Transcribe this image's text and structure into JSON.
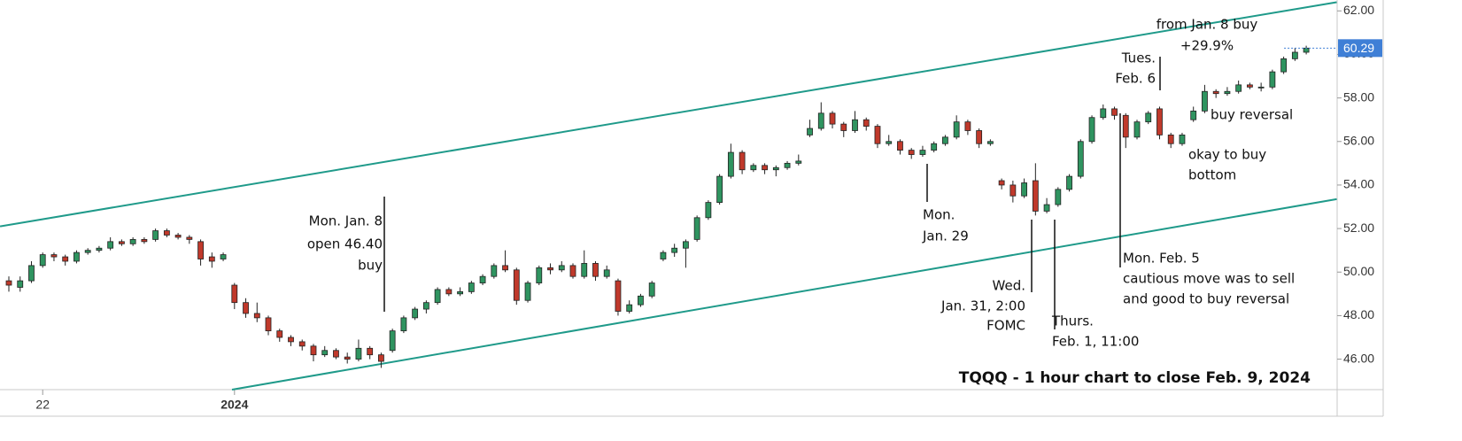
{
  "chart_data": {
    "type": "candlestick",
    "title": "TQQQ - 1 hour chart to close Feb. 9, 2024",
    "up_color": "#2f9460",
    "down_color": "#c0392b",
    "ylim": [
      44.6,
      62.5
    ],
    "yticks": [
      {
        "value": 46,
        "label": "46.00"
      },
      {
        "value": 48,
        "label": "48.00"
      },
      {
        "value": 50,
        "label": "50.00"
      },
      {
        "value": 52,
        "label": "52.00"
      },
      {
        "value": 54,
        "label": "54.00"
      },
      {
        "value": 56,
        "label": "56.00"
      },
      {
        "value": 58,
        "label": "58.00"
      },
      {
        "value": 60,
        "label": "60.00"
      },
      {
        "value": 62,
        "label": "62.00"
      }
    ],
    "categories": [
      null,
      null,
      null,
      "22",
      null,
      null,
      null,
      null,
      null,
      null,
      null,
      null,
      null,
      null,
      null,
      null,
      null,
      null,
      null,
      null,
      "2024",
      null,
      null,
      null,
      null,
      null,
      null,
      null,
      null,
      null,
      null,
      null,
      null,
      null,
      null,
      null,
      null,
      null,
      null,
      null,
      null,
      null,
      null,
      null,
      null,
      null,
      null,
      null,
      null,
      null,
      null,
      null,
      null,
      null,
      null,
      null,
      null,
      null,
      null,
      null,
      null,
      null,
      null,
      null,
      null,
      null,
      null,
      null,
      null,
      null,
      null,
      null,
      null,
      null,
      null,
      null,
      null,
      null,
      null,
      null,
      null,
      null,
      null,
      null,
      null,
      null,
      null,
      null,
      null,
      null,
      null,
      null,
      null,
      null,
      null,
      null,
      null,
      null,
      null,
      null,
      null,
      null,
      null,
      null,
      null,
      null,
      null,
      null,
      null,
      null,
      null,
      null,
      null,
      null,
      null,
      null
    ],
    "candles": [
      [
        49.6,
        49.8,
        49.1,
        49.4
      ],
      [
        49.3,
        49.8,
        49.1,
        49.6
      ],
      [
        49.6,
        50.5,
        49.5,
        50.3
      ],
      [
        50.3,
        50.9,
        50.2,
        50.8
      ],
      [
        50.8,
        50.9,
        50.5,
        50.7
      ],
      [
        50.7,
        50.8,
        50.3,
        50.5
      ],
      [
        50.5,
        51.0,
        50.4,
        50.9
      ],
      [
        50.9,
        51.1,
        50.8,
        51.0
      ],
      [
        51.0,
        51.2,
        50.9,
        51.1
      ],
      [
        51.1,
        51.6,
        51.0,
        51.4
      ],
      [
        51.4,
        51.5,
        51.2,
        51.3
      ],
      [
        51.3,
        51.6,
        51.2,
        51.5
      ],
      [
        51.5,
        51.6,
        51.3,
        51.4
      ],
      [
        51.5,
        52.0,
        51.4,
        51.9
      ],
      [
        51.9,
        52.0,
        51.6,
        51.7
      ],
      [
        51.7,
        51.8,
        51.5,
        51.6
      ],
      [
        51.6,
        51.7,
        51.3,
        51.5
      ],
      [
        51.4,
        51.5,
        50.3,
        50.6
      ],
      [
        50.7,
        50.9,
        50.2,
        50.5
      ],
      [
        50.6,
        50.9,
        50.5,
        50.8
      ],
      [
        49.4,
        49.5,
        48.3,
        48.6
      ],
      [
        48.6,
        48.8,
        47.9,
        48.1
      ],
      [
        48.1,
        48.6,
        47.7,
        47.9
      ],
      [
        47.9,
        48.0,
        47.1,
        47.3
      ],
      [
        47.3,
        47.4,
        46.8,
        47.0
      ],
      [
        47.0,
        47.1,
        46.6,
        46.8
      ],
      [
        46.8,
        46.9,
        46.4,
        46.6
      ],
      [
        46.6,
        46.7,
        45.9,
        46.2
      ],
      [
        46.2,
        46.6,
        46.1,
        46.4
      ],
      [
        46.4,
        46.5,
        46.0,
        46.1
      ],
      [
        46.1,
        46.3,
        45.8,
        46.0
      ],
      [
        46.0,
        46.9,
        45.9,
        46.5
      ],
      [
        46.5,
        46.6,
        46.0,
        46.2
      ],
      [
        46.2,
        46.3,
        45.6,
        45.9
      ],
      [
        46.4,
        47.4,
        46.3,
        47.3
      ],
      [
        47.3,
        48.0,
        47.2,
        47.9
      ],
      [
        47.9,
        48.4,
        47.8,
        48.3
      ],
      [
        48.3,
        48.7,
        48.1,
        48.6
      ],
      [
        48.6,
        49.3,
        48.5,
        49.2
      ],
      [
        49.2,
        49.3,
        48.9,
        49.0
      ],
      [
        49.0,
        49.3,
        48.9,
        49.1
      ],
      [
        49.1,
        49.6,
        49.0,
        49.5
      ],
      [
        49.5,
        49.9,
        49.4,
        49.8
      ],
      [
        49.8,
        50.4,
        49.7,
        50.3
      ],
      [
        50.3,
        51.0,
        50.0,
        50.1
      ],
      [
        50.1,
        50.2,
        48.5,
        48.7
      ],
      [
        48.7,
        49.6,
        48.6,
        49.5
      ],
      [
        49.5,
        50.3,
        49.4,
        50.2
      ],
      [
        50.2,
        50.4,
        49.9,
        50.1
      ],
      [
        50.1,
        50.5,
        50.0,
        50.3
      ],
      [
        50.3,
        50.4,
        49.7,
        49.8
      ],
      [
        49.8,
        51.0,
        49.7,
        50.4
      ],
      [
        50.4,
        50.5,
        49.6,
        49.8
      ],
      [
        49.8,
        50.3,
        49.7,
        50.1
      ],
      [
        49.6,
        49.7,
        48.0,
        48.2
      ],
      [
        48.2,
        48.7,
        48.1,
        48.5
      ],
      [
        48.5,
        49.0,
        48.4,
        48.9
      ],
      [
        48.9,
        49.6,
        48.8,
        49.5
      ],
      [
        50.6,
        51.0,
        50.5,
        50.9
      ],
      [
        50.9,
        51.3,
        50.7,
        51.1
      ],
      [
        51.1,
        51.5,
        50.2,
        51.4
      ],
      [
        51.5,
        52.6,
        51.4,
        52.5
      ],
      [
        52.5,
        53.3,
        52.4,
        53.2
      ],
      [
        53.2,
        54.5,
        53.1,
        54.4
      ],
      [
        54.4,
        55.9,
        54.3,
        55.5
      ],
      [
        55.5,
        55.6,
        54.5,
        54.7
      ],
      [
        54.7,
        55.0,
        54.6,
        54.9
      ],
      [
        54.9,
        55.0,
        54.5,
        54.7
      ],
      [
        54.7,
        54.9,
        54.4,
        54.8
      ],
      [
        54.8,
        55.1,
        54.7,
        55.0
      ],
      [
        55.0,
        55.4,
        54.9,
        55.1
      ],
      [
        56.3,
        57.0,
        56.2,
        56.6
      ],
      [
        56.6,
        57.8,
        56.5,
        57.3
      ],
      [
        57.3,
        57.4,
        56.6,
        56.8
      ],
      [
        56.8,
        56.9,
        56.2,
        56.5
      ],
      [
        56.5,
        57.4,
        56.4,
        57.0
      ],
      [
        57.0,
        57.1,
        56.5,
        56.7
      ],
      [
        56.7,
        56.8,
        55.7,
        55.9
      ],
      [
        55.9,
        56.3,
        55.8,
        56.0
      ],
      [
        56.0,
        56.1,
        55.4,
        55.6
      ],
      [
        55.6,
        55.7,
        55.2,
        55.4
      ],
      [
        55.4,
        55.8,
        55.3,
        55.6
      ],
      [
        55.6,
        56.0,
        55.5,
        55.9
      ],
      [
        55.9,
        56.3,
        55.8,
        56.2
      ],
      [
        56.2,
        57.2,
        56.1,
        56.9
      ],
      [
        56.9,
        57.0,
        56.3,
        56.5
      ],
      [
        56.5,
        56.6,
        55.7,
        55.9
      ],
      [
        55.9,
        56.1,
        55.8,
        56.0
      ],
      [
        54.2,
        54.3,
        53.8,
        54.0
      ],
      [
        54.0,
        54.2,
        53.2,
        53.5
      ],
      [
        53.5,
        54.3,
        53.4,
        54.1
      ],
      [
        54.2,
        55.0,
        52.6,
        52.8
      ],
      [
        52.8,
        53.4,
        52.7,
        53.1
      ],
      [
        53.1,
        53.9,
        53.0,
        53.8
      ],
      [
        53.8,
        54.5,
        53.7,
        54.4
      ],
      [
        54.4,
        56.1,
        54.3,
        56.0
      ],
      [
        56.0,
        57.2,
        55.9,
        57.1
      ],
      [
        57.1,
        57.7,
        57.0,
        57.5
      ],
      [
        57.5,
        57.6,
        57.0,
        57.2
      ],
      [
        57.2,
        57.3,
        55.7,
        56.2
      ],
      [
        56.2,
        57.0,
        56.1,
        56.9
      ],
      [
        56.9,
        57.4,
        56.8,
        57.3
      ],
      [
        57.5,
        57.6,
        56.1,
        56.3
      ],
      [
        56.3,
        56.4,
        55.7,
        55.9
      ],
      [
        55.9,
        56.4,
        55.8,
        56.3
      ],
      [
        57.0,
        57.6,
        56.9,
        57.4
      ],
      [
        57.4,
        58.6,
        57.3,
        58.3
      ],
      [
        58.3,
        58.4,
        58.0,
        58.2
      ],
      [
        58.2,
        58.5,
        58.1,
        58.3
      ],
      [
        58.3,
        58.8,
        58.2,
        58.6
      ],
      [
        58.6,
        58.7,
        58.4,
        58.5
      ],
      [
        58.5,
        58.7,
        58.3,
        58.5
      ],
      [
        58.5,
        59.3,
        58.4,
        59.2
      ],
      [
        59.2,
        59.9,
        59.1,
        59.8
      ],
      [
        59.8,
        60.3,
        59.7,
        60.1
      ],
      [
        60.1,
        60.4,
        60.0,
        60.29
      ]
    ],
    "last_price_color": "#3f7fd6",
    "channel": {
      "color": "#1f9a8a",
      "lines": [
        {
          "x": [
            -0.78,
            117.7
          ],
          "y": [
            52.1,
            62.4
          ]
        },
        {
          "x": [
            19.78,
            117.7
          ],
          "y": [
            44.6,
            53.35
          ]
        }
      ]
    },
    "annotations": [
      {
        "lines": [
          "Mon. Jan. 8",
          "open 46.40",
          "buy"
        ]
      },
      {
        "lines": [
          "Mon.",
          "Jan. 29"
        ]
      },
      {
        "lines": [
          "Wed.",
          "Jan. 31, 2:00",
          "FOMC"
        ]
      },
      {
        "lines": [
          "Thurs.",
          "Feb. 1, 11:00"
        ]
      },
      {
        "lines": [
          "Mon. Feb. 5",
          "cautious move was to sell",
          "and good to buy reversal"
        ]
      },
      {
        "lines": [
          "Tues.",
          "Feb. 6"
        ]
      },
      {
        "lines": [
          "from Jan. 8 buy",
          "+29.9%"
        ]
      },
      {
        "lines": [
          "buy reversal"
        ]
      },
      {
        "lines": [
          "okay to buy",
          "bottom"
        ]
      }
    ]
  }
}
